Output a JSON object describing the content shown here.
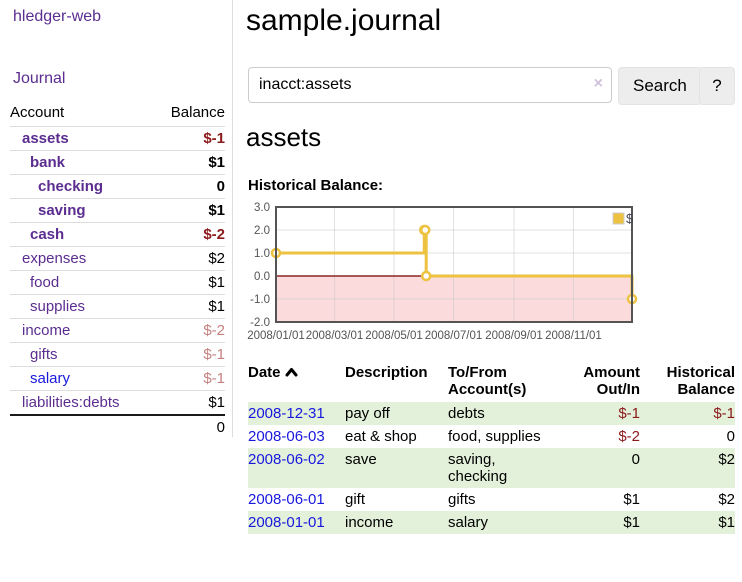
{
  "app": {
    "brand": "hledger-web",
    "nav": {
      "journal": "Journal"
    }
  },
  "sidebar": {
    "header": {
      "account": "Account",
      "balance": "Balance"
    },
    "accounts": [
      {
        "name": "assets",
        "balance": "$-1",
        "depth": 1,
        "matched": true,
        "balance_style": "neg-strong",
        "link_style": "purple"
      },
      {
        "name": "bank",
        "balance": "$1",
        "depth": 2,
        "matched": true,
        "balance_style": "pos",
        "link_style": "purple"
      },
      {
        "name": "checking",
        "balance": "0",
        "depth": 3,
        "matched": true,
        "balance_style": "pos",
        "link_style": "purple"
      },
      {
        "name": "saving",
        "balance": "$1",
        "depth": 3,
        "matched": true,
        "balance_style": "pos",
        "link_style": "purple"
      },
      {
        "name": "cash",
        "balance": "$-2",
        "depth": 2,
        "matched": true,
        "balance_style": "neg-strong",
        "link_style": "purple"
      },
      {
        "name": "expenses",
        "balance": "$2",
        "depth": 1,
        "matched": false,
        "balance_style": "pos",
        "link_style": "purple"
      },
      {
        "name": "food",
        "balance": "$1",
        "depth": 2,
        "matched": false,
        "balance_style": "pos",
        "link_style": "purple"
      },
      {
        "name": "supplies",
        "balance": "$1",
        "depth": 2,
        "matched": false,
        "balance_style": "pos",
        "link_style": "purple"
      },
      {
        "name": "income",
        "balance": "$-2",
        "depth": 1,
        "matched": false,
        "balance_style": "neg-muted",
        "link_style": "purple"
      },
      {
        "name": "gifts",
        "balance": "$-1",
        "depth": 2,
        "matched": false,
        "balance_style": "neg-muted",
        "link_style": "purple"
      },
      {
        "name": "salary",
        "balance": "$-1",
        "depth": 2,
        "matched": false,
        "balance_style": "neg-muted",
        "link_style": "blue"
      },
      {
        "name": "liabilities:debts",
        "balance": "$1",
        "depth": 1,
        "matched": false,
        "balance_style": "pos",
        "link_style": "purple"
      }
    ],
    "total": "0"
  },
  "main": {
    "title": "sample.journal",
    "search": {
      "value": "inacct:assets",
      "clear_icon": "×",
      "button": "Search",
      "help": "?"
    },
    "account_heading": "assets",
    "chart_title": "Historical Balance:",
    "register": {
      "columns": {
        "date": "Date",
        "description": "Description",
        "tofrom": "To/From\nAccount(s)",
        "amount": "Amount\nOut/In",
        "balance": "Historical\nBalance"
      },
      "rows": [
        {
          "date": "2008-12-31",
          "description": "pay off",
          "accounts": "debts",
          "amount": "$-1",
          "balance": "$-1",
          "amount_neg": true,
          "balance_neg": true,
          "shade": true
        },
        {
          "date": "2008-06-03",
          "description": "eat & shop",
          "accounts": "food, supplies",
          "amount": "$-2",
          "balance": "0",
          "amount_neg": true,
          "balance_neg": false,
          "shade": false
        },
        {
          "date": "2008-06-02",
          "description": "save",
          "accounts": "saving,\nchecking",
          "amount": "0",
          "balance": "$2",
          "amount_neg": false,
          "balance_neg": false,
          "shade": true
        },
        {
          "date": "2008-06-01",
          "description": "gift",
          "accounts": "gifts",
          "amount": "$1",
          "balance": "$2",
          "amount_neg": false,
          "balance_neg": false,
          "shade": false
        },
        {
          "date": "2008-01-01",
          "description": "income",
          "accounts": "salary",
          "amount": "$1",
          "balance": "$1",
          "amount_neg": false,
          "balance_neg": false,
          "shade": true
        }
      ]
    }
  },
  "chart_data": {
    "type": "line",
    "step": true,
    "title": "Historical Balance:",
    "series": [
      {
        "name": "$",
        "color": "#edc240",
        "points": [
          [
            "2008-01-01",
            1
          ],
          [
            "2008-06-01",
            2
          ],
          [
            "2008-06-02",
            2
          ],
          [
            "2008-06-03",
            0
          ],
          [
            "2008-12-31",
            -1
          ]
        ]
      }
    ],
    "ylim": [
      -2,
      3
    ],
    "yticks": [
      "3.0",
      "2.0",
      "1.0",
      "0.0",
      "-1.0",
      "-2.0"
    ],
    "xlim": [
      "2008-01-01",
      "2008-12-31"
    ],
    "xticks": [
      {
        "date": "2008-01-01",
        "label": "2008/01/01"
      },
      {
        "date": "2008-03-01",
        "label": "2008/03/01"
      },
      {
        "date": "2008-05-01",
        "label": "2008/05/01"
      },
      {
        "date": "2008-07-01",
        "label": "2008/07/01"
      },
      {
        "date": "2008-09-01",
        "label": "2008/09/01"
      },
      {
        "date": "2008-11-01",
        "label": "2008/11/01"
      }
    ],
    "grid": true,
    "legend": {
      "label": "$",
      "position": "top-right"
    },
    "zero_line_color": "#8b2525",
    "negative_fill": "#fbdbdb",
    "axis_color": "#545454"
  },
  "colors": {
    "purple_link": "#5b2d90",
    "blue_link": "#1818dd",
    "negative_strong": "#8b1a1a",
    "negative_muted": "#c5807e",
    "row_green": "#e3f0da",
    "series_gold": "#edc240"
  }
}
